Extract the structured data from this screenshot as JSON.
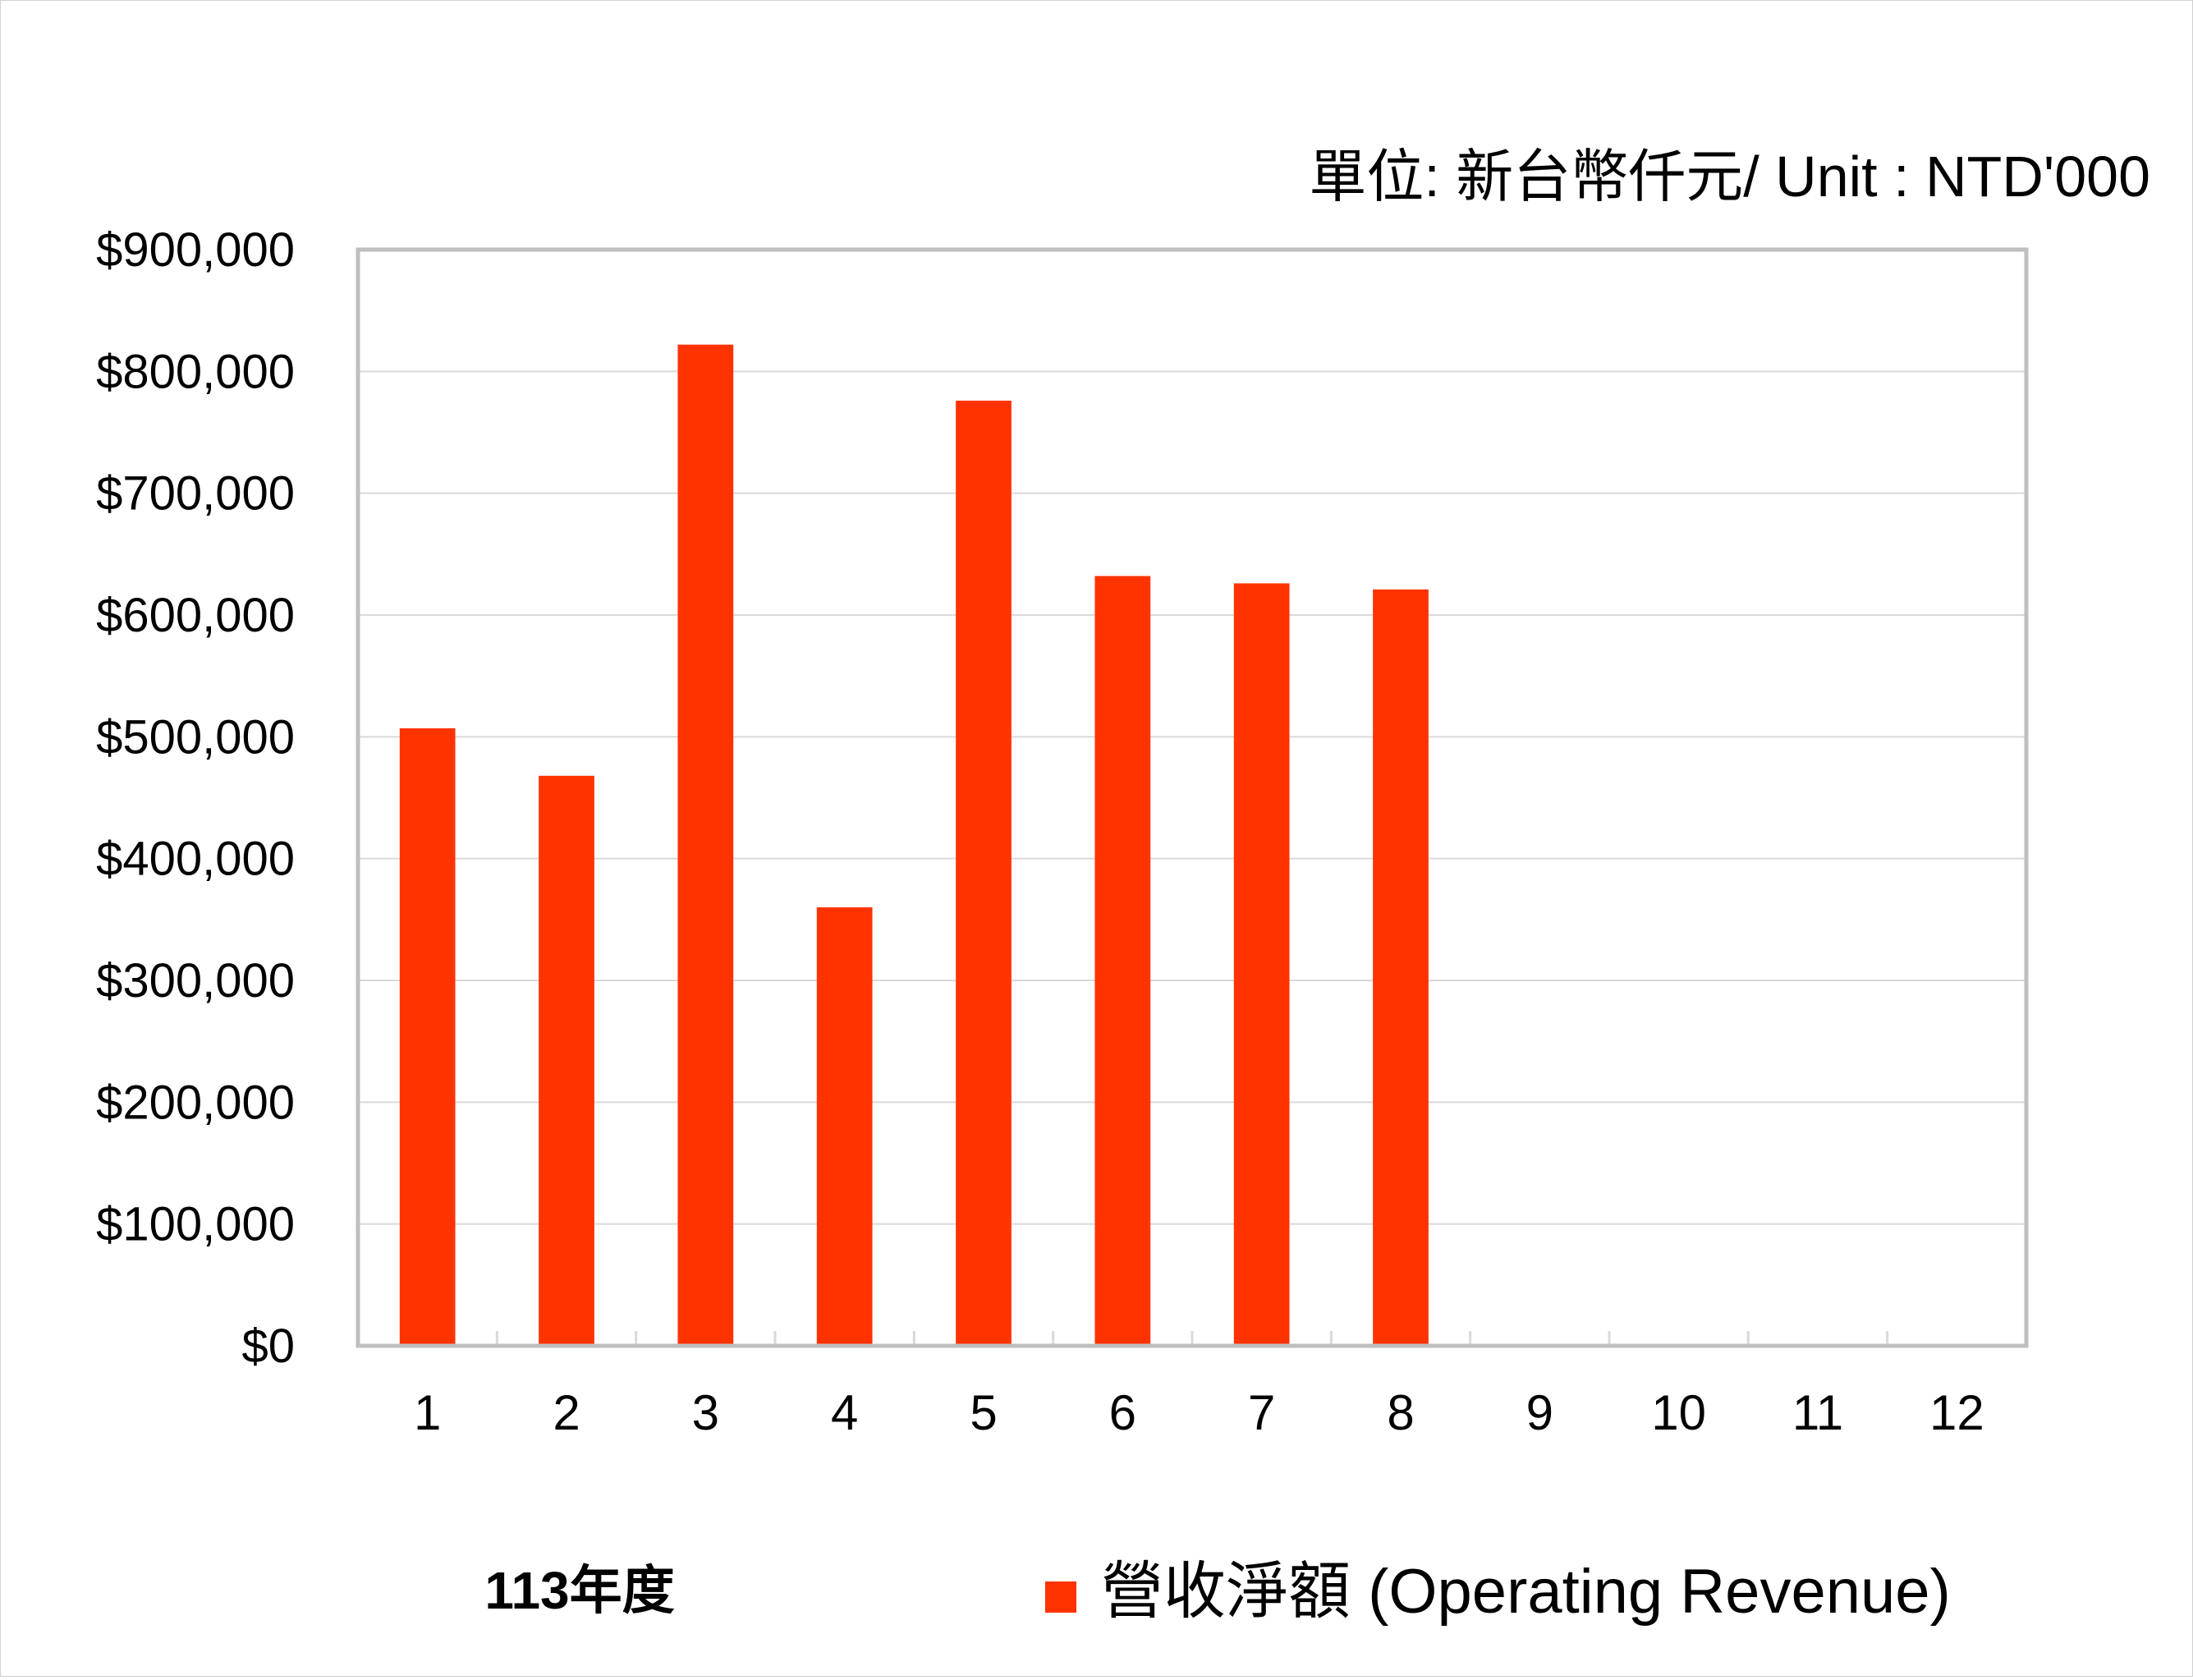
{
  "unit_label": "單位: 新台幣仟元/ Unit : NTD'000",
  "year_label": "113年度",
  "colors": {
    "bar": "#ff3300",
    "grid": "#d9d9d9",
    "axis": "#bfbfbf"
  },
  "chart_data": {
    "type": "bar",
    "categories": [
      "1",
      "2",
      "3",
      "4",
      "5",
      "6",
      "7",
      "8",
      "9",
      "10",
      "11",
      "12"
    ],
    "series": [
      {
        "name": "營收淨額 (Operating Revenue)",
        "values": [
          507000,
          468000,
          822000,
          360000,
          776000,
          632000,
          626000,
          621000,
          null,
          null,
          null,
          null
        ]
      }
    ],
    "ylim": [
      0,
      900000
    ],
    "yticks": [
      0,
      100000,
      200000,
      300000,
      400000,
      500000,
      600000,
      700000,
      800000,
      900000
    ],
    "ytick_labels": [
      "$0",
      "$100,000",
      "$200,000",
      "$300,000",
      "$400,000",
      "$500,000",
      "$600,000",
      "$700,000",
      "$800,000",
      "$900,000"
    ],
    "grid": true,
    "legend": "bottom-right"
  }
}
